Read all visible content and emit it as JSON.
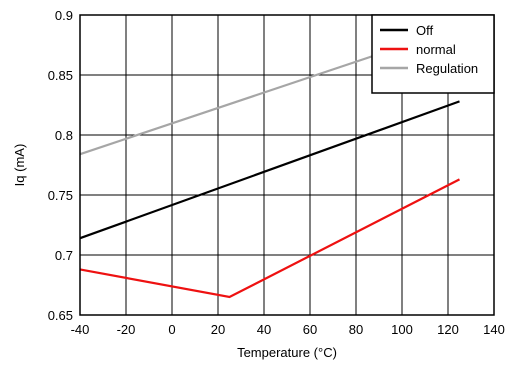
{
  "chart_data": {
    "type": "line",
    "xlabel": "Temperature (°C)",
    "ylabel": "Iq (mA)",
    "xlim": [
      -40,
      140
    ],
    "ylim": [
      0.65,
      0.9
    ],
    "xticks": [
      -40,
      -20,
      0,
      20,
      40,
      60,
      80,
      100,
      120,
      140
    ],
    "yticks": [
      0.65,
      0.7,
      0.75,
      0.8,
      0.85,
      0.9
    ],
    "grid": true,
    "legend_position": "top-right",
    "series": [
      {
        "name": "Off",
        "color": "#000000",
        "x": [
          -40,
          125
        ],
        "y": [
          0.714,
          0.828
        ]
      },
      {
        "name": "normal",
        "color": "#ee1111",
        "x": [
          -40,
          25,
          125
        ],
        "y": [
          0.688,
          0.665,
          0.763
        ]
      },
      {
        "name": "Regulation",
        "color": "#a6a6a6",
        "x": [
          -40,
          125
        ],
        "y": [
          0.784,
          0.89
        ]
      }
    ]
  }
}
